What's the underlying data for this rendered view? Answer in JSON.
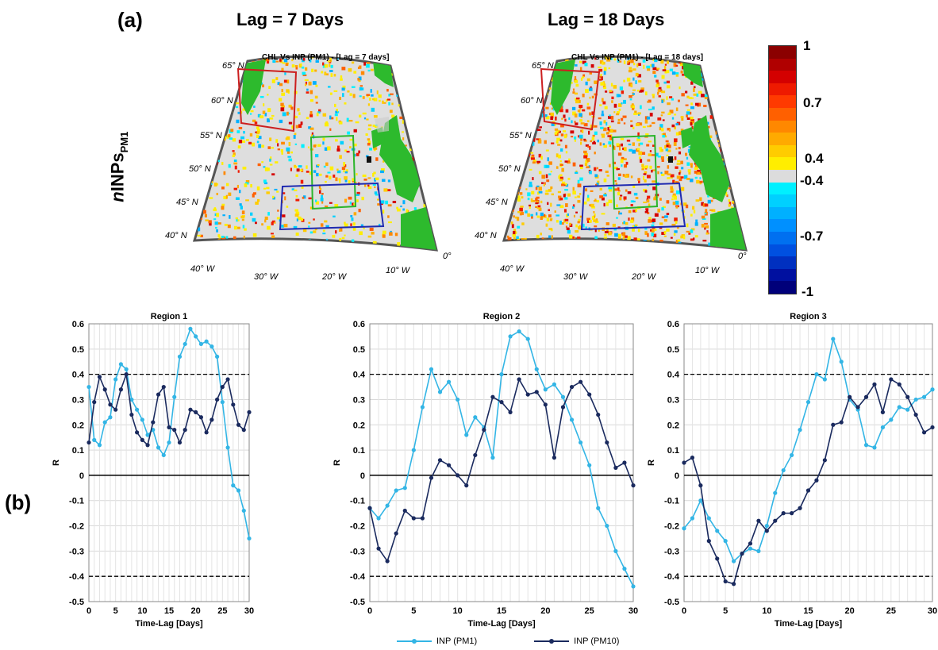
{
  "panel_labels": {
    "a": "(a)",
    "b": "(b)"
  },
  "lag_titles": [
    "Lag = 7 Days",
    "Lag = 18 Days"
  ],
  "row_label": {
    "n": "n",
    "main": "INPs",
    "sub": "PM1"
  },
  "maps": [
    {
      "title": "CHL Vs INP (PM1) - [Lag = 7 days]"
    },
    {
      "title": "CHL Vs INP (PM1) - [Lag = 18 days]"
    }
  ],
  "map_lat_labels": [
    "65° N",
    "60° N",
    "55° N",
    "50° N",
    "45° N",
    "40° N"
  ],
  "map_lon_labels": [
    "40° W",
    "30° W",
    "20° W",
    "10° W",
    "0°"
  ],
  "colorbar": {
    "labels": [
      "1",
      "0.7",
      "0.4",
      "-0.4",
      "-0.7",
      "-1"
    ],
    "colors": [
      "#8b0000",
      "#b00000",
      "#d40000",
      "#ee1a00",
      "#ff3a00",
      "#ff6000",
      "#ff8800",
      "#ffaa00",
      "#ffcc00",
      "#ffee00",
      "#dcdcdc",
      "#00f0ff",
      "#00d0ff",
      "#00b0ff",
      "#0090ff",
      "#0070f0",
      "#0050e0",
      "#0030c0",
      "#0010a0",
      "#00007a"
    ]
  },
  "legend": {
    "pm1": "INP (PM1)",
    "pm10": "INP (PM10)"
  },
  "colors": {
    "pm1": "#33b5e5",
    "pm10": "#1a2a5e"
  },
  "chart_data": [
    {
      "type": "line",
      "title": "Region 1",
      "xlabel": "Time-Lag [Days]",
      "ylabel": "R",
      "xlim": [
        0,
        30
      ],
      "ylim": [
        -0.5,
        0.6
      ],
      "x_ticks": [
        0,
        5,
        10,
        15,
        20,
        25,
        30
      ],
      "y_ticks": [
        -0.5,
        -0.4,
        -0.3,
        -0.2,
        -0.1,
        0,
        0.1,
        0.2,
        0.3,
        0.4,
        0.5,
        0.6
      ],
      "reference_lines": [
        0.4,
        -0.4
      ],
      "grid": true,
      "x": [
        0,
        1,
        2,
        3,
        4,
        5,
        6,
        7,
        8,
        9,
        10,
        11,
        12,
        13,
        14,
        15,
        16,
        17,
        18,
        19,
        20,
        21,
        22,
        23,
        24,
        25,
        26,
        27,
        28,
        29,
        30
      ],
      "series": [
        {
          "name": "INP (PM1)",
          "values": [
            0.35,
            0.14,
            0.12,
            0.21,
            0.23,
            0.38,
            0.44,
            0.42,
            0.3,
            0.26,
            0.22,
            0.16,
            0.18,
            0.11,
            0.08,
            0.13,
            0.31,
            0.47,
            0.52,
            0.58,
            0.55,
            0.52,
            0.53,
            0.51,
            0.47,
            0.29,
            0.11,
            -0.04,
            -0.06,
            -0.14,
            -0.25
          ]
        },
        {
          "name": "INP (PM10)",
          "values": [
            0.13,
            0.29,
            0.39,
            0.34,
            0.28,
            0.26,
            0.34,
            0.4,
            0.24,
            0.17,
            0.14,
            0.12,
            0.21,
            0.32,
            0.35,
            0.19,
            0.18,
            0.13,
            0.18,
            0.26,
            0.25,
            0.23,
            0.17,
            0.22,
            0.3,
            0.35,
            0.38,
            0.28,
            0.2,
            0.18,
            0.25
          ]
        }
      ]
    },
    {
      "type": "line",
      "title": "Region 2",
      "xlabel": "Time-Lag [Days]",
      "ylabel": "R",
      "xlim": [
        0,
        30
      ],
      "ylim": [
        -0.5,
        0.6
      ],
      "x_ticks": [
        0,
        5,
        10,
        15,
        20,
        25,
        30
      ],
      "y_ticks": [
        -0.5,
        -0.4,
        -0.3,
        -0.2,
        -0.1,
        0,
        0.1,
        0.2,
        0.3,
        0.4,
        0.5,
        0.6
      ],
      "reference_lines": [
        0.4,
        -0.4
      ],
      "grid": true,
      "x": [
        0,
        1,
        2,
        3,
        4,
        5,
        6,
        7,
        8,
        9,
        10,
        11,
        12,
        13,
        14,
        15,
        16,
        17,
        18,
        19,
        20,
        21,
        22,
        23,
        24,
        25,
        26,
        27,
        28,
        29,
        30
      ],
      "series": [
        {
          "name": "INP (PM1)",
          "values": [
            -0.13,
            -0.17,
            -0.12,
            -0.06,
            -0.05,
            0.1,
            0.27,
            0.42,
            0.33,
            0.37,
            0.3,
            0.16,
            0.23,
            0.19,
            0.07,
            0.4,
            0.55,
            0.57,
            0.54,
            0.42,
            0.34,
            0.36,
            0.31,
            0.22,
            0.13,
            0.04,
            -0.13,
            -0.2,
            -0.3,
            -0.37,
            -0.44
          ]
        },
        {
          "name": "INP (PM10)",
          "values": [
            -0.13,
            -0.29,
            -0.34,
            -0.23,
            -0.14,
            -0.17,
            -0.17,
            -0.01,
            0.06,
            0.04,
            0.0,
            -0.04,
            0.08,
            0.18,
            0.31,
            0.29,
            0.25,
            0.38,
            0.32,
            0.33,
            0.28,
            0.07,
            0.27,
            0.35,
            0.37,
            0.32,
            0.24,
            0.13,
            0.03,
            0.05,
            -0.04
          ]
        }
      ]
    },
    {
      "type": "line",
      "title": "Region 3",
      "xlabel": "Time-Lag [Days]",
      "ylabel": "R",
      "xlim": [
        0,
        30
      ],
      "ylim": [
        -0.5,
        0.6
      ],
      "x_ticks": [
        0,
        5,
        10,
        15,
        20,
        25,
        30
      ],
      "y_ticks": [
        -0.5,
        -0.4,
        -0.3,
        -0.2,
        -0.1,
        0,
        0.1,
        0.2,
        0.3,
        0.4,
        0.5,
        0.6
      ],
      "reference_lines": [
        0.4,
        -0.4
      ],
      "grid": true,
      "x": [
        0,
        1,
        2,
        3,
        4,
        5,
        6,
        7,
        8,
        9,
        10,
        11,
        12,
        13,
        14,
        15,
        16,
        17,
        18,
        19,
        20,
        21,
        22,
        23,
        24,
        25,
        26,
        27,
        28,
        29,
        30
      ],
      "series": [
        {
          "name": "INP (PM1)",
          "values": [
            -0.21,
            -0.17,
            -0.1,
            -0.17,
            -0.22,
            -0.26,
            -0.34,
            -0.31,
            -0.29,
            -0.3,
            -0.2,
            -0.07,
            0.02,
            0.08,
            0.18,
            0.29,
            0.4,
            0.38,
            0.54,
            0.45,
            0.3,
            0.26,
            0.12,
            0.11,
            0.19,
            0.22,
            0.27,
            0.26,
            0.3,
            0.31,
            0.34
          ]
        },
        {
          "name": "INP (PM10)",
          "values": [
            0.05,
            0.07,
            -0.04,
            -0.26,
            -0.33,
            -0.42,
            -0.43,
            -0.31,
            -0.27,
            -0.18,
            -0.22,
            -0.18,
            -0.15,
            -0.15,
            -0.13,
            -0.06,
            -0.02,
            0.06,
            0.2,
            0.21,
            0.31,
            0.27,
            0.31,
            0.36,
            0.25,
            0.38,
            0.36,
            0.31,
            0.24,
            0.17,
            0.19
          ]
        }
      ]
    }
  ]
}
